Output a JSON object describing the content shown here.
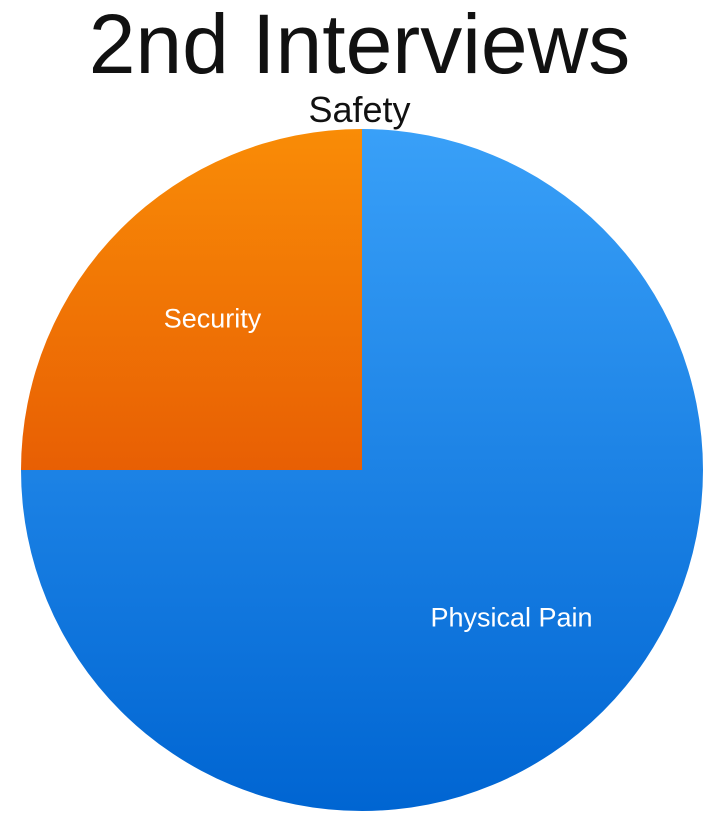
{
  "chart_data": {
    "type": "pie",
    "title": "2nd Interviews",
    "subtitle": "Safety",
    "categories": [
      "Physical Pain",
      "Security"
    ],
    "values": [
      75,
      25
    ],
    "colors": {
      "Physical Pain": [
        "#39a0f8",
        "#0065d2"
      ],
      "Security": [
        "#f98c06",
        "#e85f04"
      ]
    },
    "start_angle_deg": 0,
    "direction": "clockwise",
    "legend": "none",
    "data_labels": "inside"
  }
}
